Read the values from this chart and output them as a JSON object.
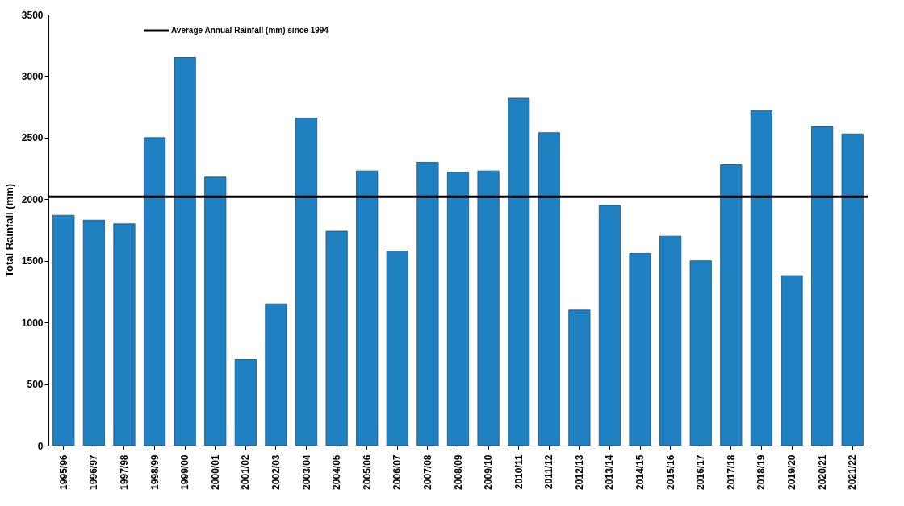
{
  "chart_data": {
    "type": "bar",
    "ylabel": "Total Rainfall (mm)",
    "categories": [
      "1995/96",
      "1996/97",
      "1997/98",
      "1998/99",
      "1999/00",
      "2000/01",
      "2001/02",
      "2002/03",
      "2003/04",
      "2004/05",
      "2005/06",
      "2006/07",
      "2007/08",
      "2008/09",
      "2009/10",
      "2010/11",
      "2011/12",
      "2012/13",
      "2013/14",
      "2014/15",
      "2015/16",
      "2016/17",
      "2017/18",
      "2018/19",
      "2019/20",
      "2020/21",
      "2021/22"
    ],
    "values": [
      1870,
      1830,
      1800,
      2500,
      3150,
      2180,
      700,
      1150,
      2660,
      1740,
      2230,
      1580,
      2300,
      2220,
      2230,
      2820,
      2540,
      1100,
      1950,
      1560,
      1700,
      1500,
      2280,
      2720,
      1380,
      2590,
      2530
    ],
    "color": "#1f80c2",
    "ylim": [
      0,
      3500
    ],
    "yticks": [
      0,
      500,
      1000,
      1500,
      2000,
      2500,
      3000,
      3500
    ],
    "ref_lines": [
      {
        "axis": "y",
        "value": 2020,
        "label": "Average Annual Rainfall (mm) since 1994",
        "color": "#000000"
      }
    ]
  }
}
